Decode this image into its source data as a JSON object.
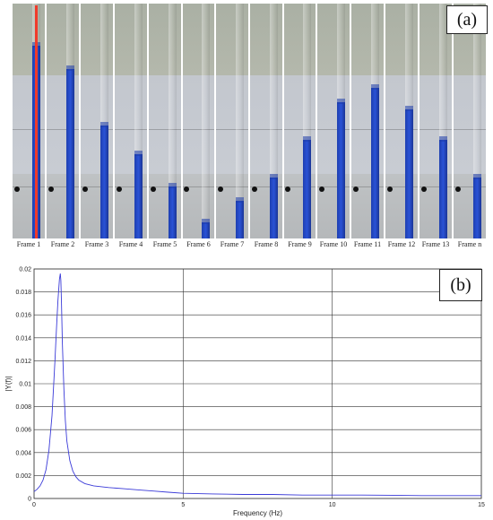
{
  "panel_a": {
    "tag": "(a)",
    "frames": [
      {
        "label": "Frame 1",
        "water": 0.82
      },
      {
        "label": "Frame 2",
        "water": 0.72
      },
      {
        "label": "Frame 3",
        "water": 0.48
      },
      {
        "label": "Frame 4",
        "water": 0.36
      },
      {
        "label": "Frame 5",
        "water": 0.22
      },
      {
        "label": "Frame 6",
        "water": 0.07
      },
      {
        "label": "Frame 7",
        "water": 0.16
      },
      {
        "label": "Frame 8",
        "water": 0.26
      },
      {
        "label": "Frame 9",
        "water": 0.42
      },
      {
        "label": "Frame 10",
        "water": 0.58
      },
      {
        "label": "Frame 11",
        "water": 0.64
      },
      {
        "label": "Frame 12",
        "water": 0.55
      },
      {
        "label": "Frame 13",
        "water": 0.42
      },
      {
        "label": "Frame n",
        "water": 0.26
      }
    ]
  },
  "panel_b": {
    "tag": "(b)"
  },
  "chart_data": {
    "type": "line",
    "title": "",
    "xlabel": "Frequency (Hz)",
    "ylabel": "|Y(f)|",
    "xlim": [
      0,
      15
    ],
    "ylim": [
      0,
      0.02
    ],
    "xticks": [
      "0",
      "5",
      "10",
      "15"
    ],
    "yticks": [
      "0",
      "0.002",
      "0.004",
      "0.006",
      "0.008",
      "0.01",
      "0.012",
      "0.014",
      "0.016",
      "0.018",
      "0.02"
    ],
    "grid": true,
    "line_color": "#3a3ad8",
    "series": [
      {
        "x": [
          0,
          0.1,
          0.2,
          0.3,
          0.4,
          0.5,
          0.6,
          0.65,
          0.7,
          0.75,
          0.8,
          0.85,
          0.88,
          0.9,
          0.92,
          0.95,
          1.0,
          1.05,
          1.1,
          1.2,
          1.3,
          1.4,
          1.5,
          1.7,
          2.0,
          2.5,
          3.0,
          3.5,
          4.0,
          4.5,
          5.0,
          6.0,
          7.0,
          8.0,
          9.0,
          10.0,
          11.0,
          12.0,
          13.0,
          14.0,
          15.0
        ],
        "y": [
          0.0006,
          0.0008,
          0.0011,
          0.0016,
          0.0025,
          0.0042,
          0.0072,
          0.0095,
          0.012,
          0.0148,
          0.0172,
          0.0191,
          0.0196,
          0.019,
          0.017,
          0.0135,
          0.0095,
          0.0068,
          0.005,
          0.0033,
          0.0024,
          0.0019,
          0.0016,
          0.0013,
          0.0011,
          0.00095,
          0.00085,
          0.00075,
          0.00065,
          0.00055,
          0.00045,
          0.0004,
          0.00035,
          0.00035,
          0.0003,
          0.0003,
          0.0003,
          0.00028,
          0.00025,
          0.00025,
          0.00025
        ]
      }
    ]
  }
}
